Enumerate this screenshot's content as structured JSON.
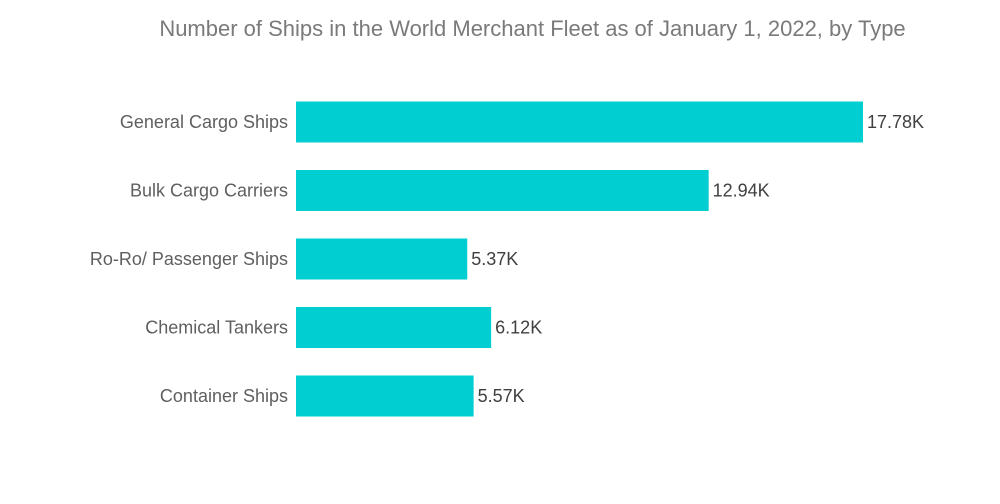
{
  "chart_data": {
    "type": "bar",
    "orientation": "horizontal",
    "title": "Number of Ships in the World Merchant Fleet as of January 1, 2022, by Type",
    "categories": [
      "General Cargo Ships",
      "Bulk Cargo Carriers",
      "Ro-Ro/ Passenger Ships",
      "Chemical Tankers",
      "Container Ships"
    ],
    "values": [
      17780,
      12940,
      5370,
      6120,
      5570
    ],
    "value_labels": [
      "17.78K",
      "12.94K",
      "5.37K",
      "6.12K",
      "5.57K"
    ],
    "xlabel": "",
    "ylabel": "",
    "xlim": [
      0,
      17780
    ],
    "grid": false,
    "legend": "none",
    "bar_color": "#00CED1"
  }
}
